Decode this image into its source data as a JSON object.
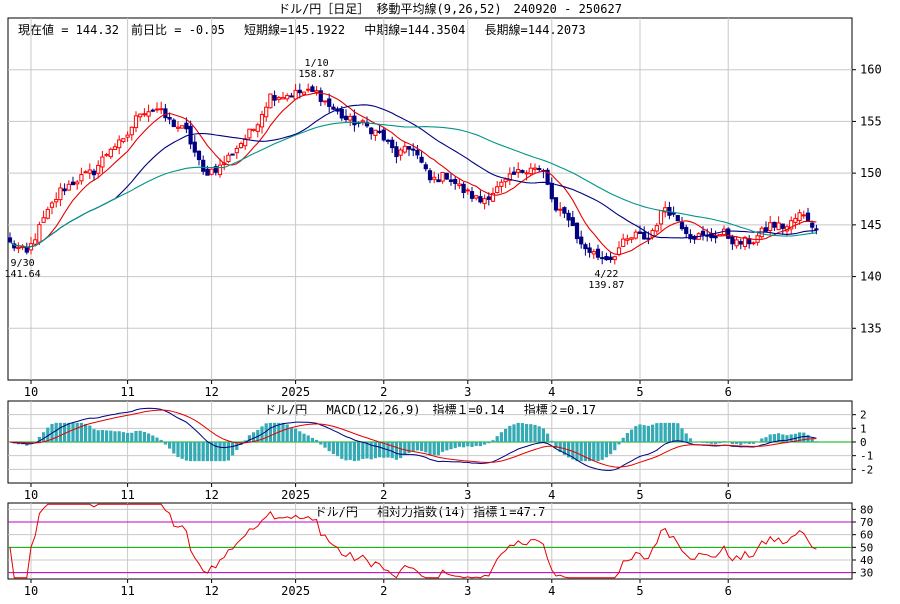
{
  "header": {
    "title": "ドル/円［日足］ 移動平均線(9,26,52)　240920 - 250627",
    "info": "現在値 = 144.32　前日比 = -0.05　 短期線=145.1922　 中期線=144.3504　 長期線=144.2073"
  },
  "chart_data": [
    {
      "type": "candlestick",
      "title": "ドル/円［日足］ 移動平均線(9,26,52)",
      "period": "240920 - 250627",
      "ylim": [
        130,
        165
      ],
      "yticks": [
        135,
        140,
        145,
        150,
        155,
        160
      ],
      "month_labels": [
        {
          "label": "10",
          "day": 5
        },
        {
          "label": "11",
          "day": 28
        },
        {
          "label": "12",
          "day": 48
        },
        {
          "label": "2025",
          "day": 68
        },
        {
          "label": "2",
          "day": 89
        },
        {
          "label": "3",
          "day": 109
        },
        {
          "label": "4",
          "day": 129
        },
        {
          "label": "5",
          "day": 150
        },
        {
          "label": "6",
          "day": 171
        }
      ],
      "anchors": [
        {
          "day": 0,
          "close": 143.2
        },
        {
          "day": 4,
          "close": 142.2
        },
        {
          "day": 8,
          "close": 145.5
        },
        {
          "day": 12,
          "close": 148.3
        },
        {
          "day": 16,
          "close": 149.4
        },
        {
          "day": 20,
          "close": 150.2
        },
        {
          "day": 24,
          "close": 152.5
        },
        {
          "day": 27,
          "close": 153.0
        },
        {
          "day": 31,
          "close": 156.0
        },
        {
          "day": 35,
          "close": 156.2
        },
        {
          "day": 38,
          "close": 155.0
        },
        {
          "day": 42,
          "close": 154.0
        },
        {
          "day": 46,
          "close": 150.0
        },
        {
          "day": 50,
          "close": 150.6
        },
        {
          "day": 54,
          "close": 152.5
        },
        {
          "day": 58,
          "close": 154.3
        },
        {
          "day": 62,
          "close": 157.5
        },
        {
          "day": 65,
          "close": 157.5
        },
        {
          "day": 69,
          "close": 157.8
        },
        {
          "day": 73,
          "close": 157.8
        },
        {
          "day": 76,
          "close": 156.5
        },
        {
          "day": 80,
          "close": 155.2
        },
        {
          "day": 84,
          "close": 154.7
        },
        {
          "day": 88,
          "close": 153.8
        },
        {
          "day": 92,
          "close": 151.8
        },
        {
          "day": 96,
          "close": 152.5
        },
        {
          "day": 100,
          "close": 149.3
        },
        {
          "day": 104,
          "close": 149.8
        },
        {
          "day": 108,
          "close": 148.3
        },
        {
          "day": 112,
          "close": 147.3
        },
        {
          "day": 116,
          "close": 148.5
        },
        {
          "day": 120,
          "close": 149.8
        },
        {
          "day": 124,
          "close": 150.7
        },
        {
          "day": 127,
          "close": 150.0
        },
        {
          "day": 130,
          "close": 146.3
        },
        {
          "day": 133,
          "close": 145.8
        },
        {
          "day": 136,
          "close": 143.0
        },
        {
          "day": 140,
          "close": 142.0
        },
        {
          "day": 143,
          "close": 141.8
        },
        {
          "day": 146,
          "close": 143.2
        },
        {
          "day": 149,
          "close": 144.0
        },
        {
          "day": 152,
          "close": 143.7
        },
        {
          "day": 156,
          "close": 146.8
        },
        {
          "day": 159,
          "close": 145.5
        },
        {
          "day": 162,
          "close": 144.0
        },
        {
          "day": 166,
          "close": 143.8
        },
        {
          "day": 170,
          "close": 144.2
        },
        {
          "day": 173,
          "close": 143.2
        },
        {
          "day": 177,
          "close": 143.5
        },
        {
          "day": 181,
          "close": 145.0
        },
        {
          "day": 185,
          "close": 144.8
        },
        {
          "day": 188,
          "close": 146.0
        },
        {
          "day": 190,
          "close": 145.6
        },
        {
          "day": 192,
          "close": 144.6
        }
      ],
      "series": [
        {
          "name": "短期線",
          "period": 9,
          "value_last": 145.1922,
          "color": "#e60000"
        },
        {
          "name": "中期線",
          "period": 26,
          "value_last": 144.3504,
          "color": "#000080"
        },
        {
          "name": "長期線",
          "period": 52,
          "value_last": 144.2073,
          "color": "#009688"
        }
      ],
      "annotations": [
        {
          "date": "9/30",
          "value": "141.64",
          "day": 3,
          "position": "below"
        },
        {
          "date": "1/10",
          "value": "158.87",
          "day": 73,
          "position": "above"
        },
        {
          "date": "4/22",
          "value": "139.87",
          "day": 142,
          "position": "below"
        }
      ],
      "current": {
        "label": "現在値",
        "value": 144.32,
        "change_label": "前日比",
        "change": -0.05
      },
      "colors": {
        "up": "#ff0000",
        "down": "#000080",
        "sma9": "#e60000",
        "sma26": "#000080",
        "sma52": "#009688",
        "grid": "#c8c8c8"
      }
    },
    {
      "type": "line",
      "title": "MACD(12,26,9)",
      "legend": "ドル/円　 MACD(12,26,9)　指標１=0.14　 指標２=0.17",
      "ylim": [
        -3,
        3
      ],
      "yticks": [
        -2,
        -1,
        0,
        1,
        2
      ],
      "series": [
        {
          "name": "指標１",
          "value_last": 0.14,
          "color": "#000080"
        },
        {
          "name": "指標２",
          "value_last": 0.17,
          "color": "#e60000"
        }
      ],
      "histogram_color": "#33aab4",
      "zero_line_color": "#00b000"
    },
    {
      "type": "line",
      "title": "相対力指数(14)",
      "legend": "ドル/円　 相対力指数(14) 指標１=47.7",
      "ylim": [
        25,
        85
      ],
      "yticks": [
        30,
        40,
        50,
        60,
        70,
        80
      ],
      "levels": [
        {
          "value": 30,
          "color": "#c000c0"
        },
        {
          "value": 50,
          "color": "#00b000"
        },
        {
          "value": 70,
          "color": "#c000c0"
        }
      ],
      "series": [
        {
          "name": "指標１",
          "value_last": 47.7,
          "color": "#e60000"
        }
      ]
    }
  ]
}
